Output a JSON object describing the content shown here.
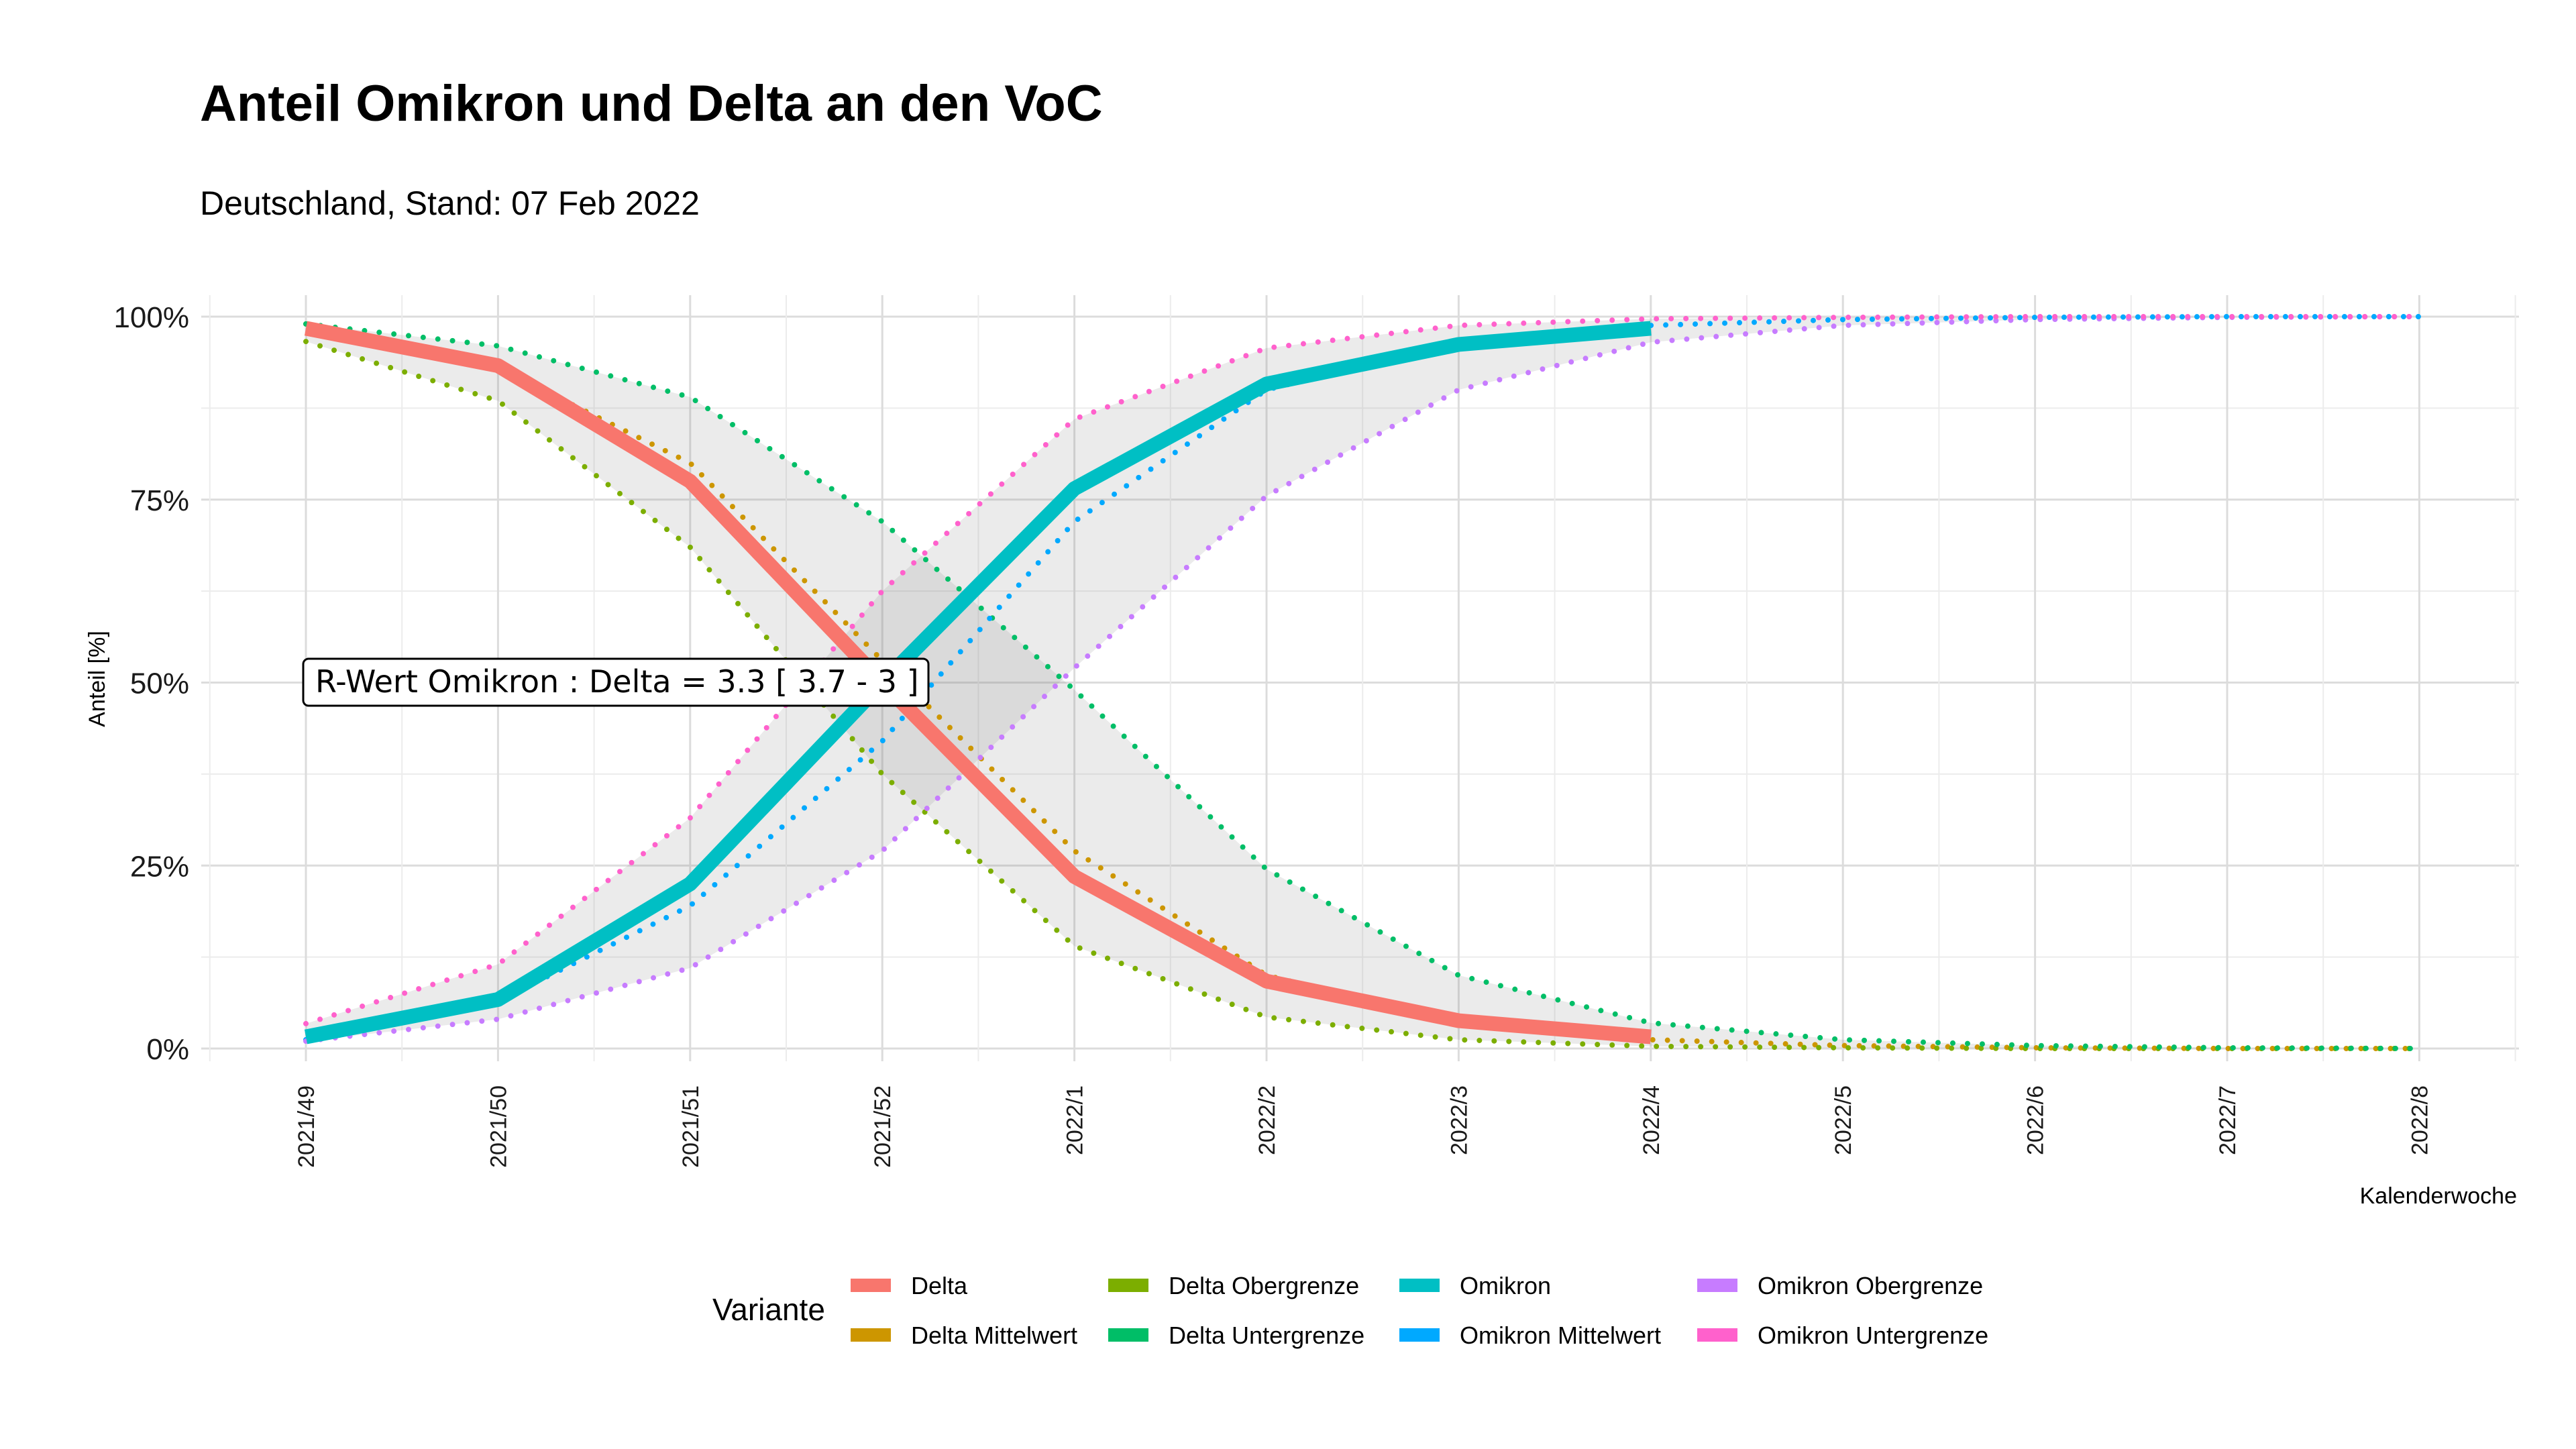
{
  "chart_data": {
    "type": "line",
    "title": "Anteil Omikron und Delta an den VoC",
    "subtitle": "Deutschland, Stand: 07 Feb 2022",
    "xlabel": "Kalenderwoche",
    "ylabel": "Anteil [%]",
    "ylim": [
      0,
      1
    ],
    "yticks": [
      "0%",
      "25%",
      "50%",
      "75%",
      "100%"
    ],
    "ytick_values": [
      0,
      0.25,
      0.5,
      0.75,
      1
    ],
    "categories": [
      "2021/49",
      "2021/50",
      "2021/51",
      "2021/52",
      "2022/1",
      "2022/2",
      "2022/3",
      "2022/4",
      "2022/5",
      "2022/6",
      "2022/7",
      "2022/8"
    ],
    "grid": true,
    "legend_title": "Variante",
    "legend_position": "bottom",
    "annotation": "R-Wert Omikron : Delta = 3.3 [ 3.7 - 3 ]",
    "series": [
      {
        "name": "Delta",
        "style": "solid",
        "color": "#F8766D",
        "x": [
          0,
          1,
          2,
          3,
          4,
          5,
          6,
          7
        ],
        "values": [
          0.984,
          0.933,
          0.775,
          0.5,
          0.235,
          0.092,
          0.038,
          0.016
        ]
      },
      {
        "name": "Delta Mittelwert",
        "style": "dotted",
        "color": "#CD9600",
        "x": [
          0,
          1,
          2,
          3,
          4,
          5,
          6,
          7,
          8,
          9,
          10,
          11
        ],
        "values": [
          0.99,
          0.93,
          0.8,
          0.53,
          0.27,
          0.1,
          0.035,
          0.012,
          0.004,
          0.001,
          0.0,
          0.0
        ]
      },
      {
        "name": "Delta Obergrenze",
        "style": "dotted",
        "color": "#7CAE00",
        "x": [
          0,
          1,
          2,
          3,
          4,
          5,
          6,
          7,
          8,
          9,
          10,
          11
        ],
        "values": [
          0.966,
          0.885,
          0.685,
          0.375,
          0.14,
          0.043,
          0.012,
          0.003,
          0.001,
          0.0,
          0.0,
          0.0
        ]
      },
      {
        "name": "Delta Untergrenze",
        "style": "dotted",
        "color": "#00BE67",
        "x": [
          0,
          1,
          2,
          3,
          4,
          5,
          6,
          7,
          8,
          9,
          10,
          11
        ],
        "values": [
          0.99,
          0.96,
          0.89,
          0.72,
          0.49,
          0.245,
          0.1,
          0.035,
          0.012,
          0.004,
          0.001,
          0.0
        ]
      },
      {
        "name": "Omikron",
        "style": "solid",
        "color": "#00BFC4",
        "x": [
          0,
          1,
          2,
          3,
          4,
          5,
          6,
          7
        ],
        "values": [
          0.016,
          0.067,
          0.225,
          0.5,
          0.765,
          0.908,
          0.962,
          0.984
        ]
      },
      {
        "name": "Omikron Mittelwert",
        "style": "dotted",
        "color": "#00A9FF",
        "x": [
          0,
          1,
          2,
          3,
          4,
          5,
          6,
          7,
          8,
          9,
          10,
          11
        ],
        "values": [
          0.012,
          0.065,
          0.195,
          0.42,
          0.72,
          0.9,
          0.965,
          0.988,
          0.996,
          0.999,
          1.0,
          1.0
        ]
      },
      {
        "name": "Omikron Obergrenze",
        "style": "dotted",
        "color": "#C77CFF",
        "x": [
          0,
          1,
          2,
          3,
          4,
          5,
          6,
          7,
          8,
          9,
          10,
          11
        ],
        "values": [
          0.01,
          0.04,
          0.11,
          0.27,
          0.52,
          0.755,
          0.9,
          0.965,
          0.988,
          0.996,
          0.999,
          1.0
        ]
      },
      {
        "name": "Omikron Untergrenze",
        "style": "dotted",
        "color": "#FF61CC",
        "x": [
          0,
          1,
          2,
          3,
          4,
          5,
          6,
          7,
          8,
          9,
          10,
          11
        ],
        "values": [
          0.034,
          0.115,
          0.315,
          0.625,
          0.86,
          0.957,
          0.988,
          0.997,
          0.999,
          1.0,
          1.0,
          1.0
        ]
      }
    ]
  }
}
